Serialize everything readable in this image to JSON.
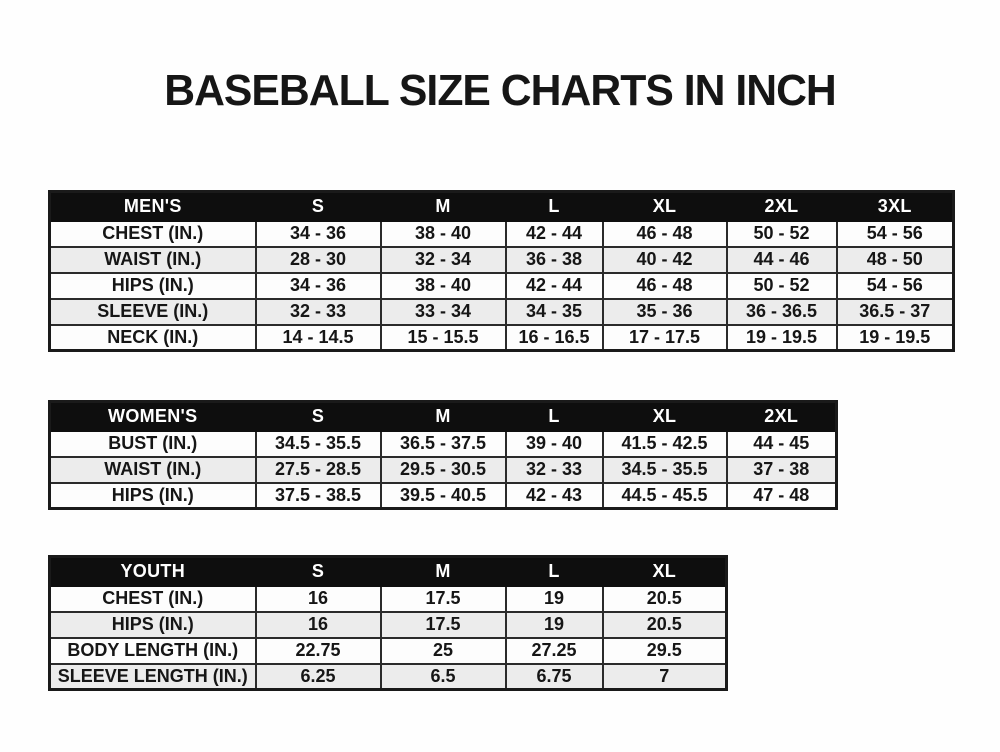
{
  "title": "BASEBALL SIZE CHARTS IN INCH",
  "tables": [
    {
      "name": "mens",
      "header": [
        "MEN'S",
        "S",
        "M",
        "L",
        "XL",
        "2XL",
        "3XL"
      ],
      "rows": [
        [
          "CHEST (IN.)",
          "34 - 36",
          "38 - 40",
          "42 - 44",
          "46 - 48",
          "50 - 52",
          "54 - 56"
        ],
        [
          "WAIST (IN.)",
          "28 - 30",
          "32 - 34",
          "36 - 38",
          "40 - 42",
          "44 - 46",
          "48 - 50"
        ],
        [
          "HIPS (IN.)",
          "34 - 36",
          "38 - 40",
          "42 - 44",
          "46 - 48",
          "50 - 52",
          "54 - 56"
        ],
        [
          "SLEEVE (IN.)",
          "32 - 33",
          "33 - 34",
          "34 - 35",
          "35 - 36",
          "36 - 36.5",
          "36.5 - 37"
        ],
        [
          "NECK (IN.)",
          "14 - 14.5",
          "15 - 15.5",
          "16 - 16.5",
          "17 - 17.5",
          "19 - 19.5",
          "19 - 19.5"
        ]
      ]
    },
    {
      "name": "womens",
      "header": [
        "WOMEN'S",
        "S",
        "M",
        "L",
        "XL",
        "2XL"
      ],
      "rows": [
        [
          "BUST (IN.)",
          "34.5 - 35.5",
          "36.5 - 37.5",
          "39 - 40",
          "41.5 - 42.5",
          "44 - 45"
        ],
        [
          "WAIST (IN.)",
          "27.5 - 28.5",
          "29.5 - 30.5",
          "32 - 33",
          "34.5 - 35.5",
          "37 - 38"
        ],
        [
          "HIPS (IN.)",
          "37.5 - 38.5",
          "39.5 - 40.5",
          "42 - 43",
          "44.5 - 45.5",
          "47 - 48"
        ]
      ]
    },
    {
      "name": "youth",
      "header": [
        "YOUTH",
        "S",
        "M",
        "L",
        "XL"
      ],
      "rows": [
        [
          "CHEST (IN.)",
          "16",
          "17.5",
          "19",
          "20.5"
        ],
        [
          "HIPS (IN.)",
          "16",
          "17.5",
          "19",
          "20.5"
        ],
        [
          "BODY LENGTH (IN.)",
          "22.75",
          "25",
          "27.25",
          "29.5"
        ],
        [
          "SLEEVE LENGTH (IN.)",
          "6.25",
          "6.5",
          "6.75",
          "7"
        ]
      ]
    }
  ],
  "colors": {
    "header_bg": "#0e0e0e",
    "header_text": "#ffffff",
    "row_bg": "#fdfdfd",
    "row_alt_bg": "#ececec",
    "border": "#2b2b2b",
    "text": "#161616"
  }
}
